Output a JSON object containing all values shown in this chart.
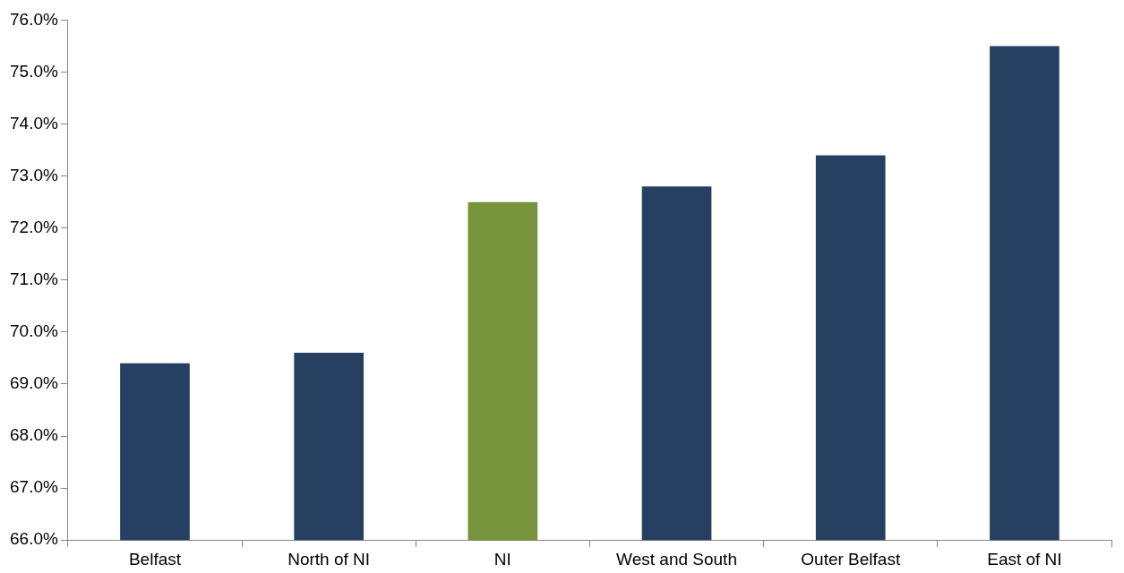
{
  "chart_data": {
    "type": "bar",
    "categories": [
      "Belfast",
      "North of NI",
      "NI",
      "West and South",
      "Outer Belfast",
      "East of NI"
    ],
    "values": [
      69.4,
      69.6,
      72.5,
      72.8,
      73.4,
      75.5
    ],
    "colors": [
      "#264061",
      "#264061",
      "#77933c",
      "#264061",
      "#264061",
      "#264061"
    ],
    "ylim": [
      66,
      76
    ],
    "yticks": [
      {
        "value": 66,
        "label": "66.0%"
      },
      {
        "value": 67,
        "label": "67.0%"
      },
      {
        "value": 68,
        "label": "68.0%"
      },
      {
        "value": 69,
        "label": "69.0%"
      },
      {
        "value": 70,
        "label": "70.0%"
      },
      {
        "value": 71,
        "label": "71.0%"
      },
      {
        "value": 72,
        "label": "72.0%"
      },
      {
        "value": 73,
        "label": "73.0%"
      },
      {
        "value": 74,
        "label": "74.0%"
      },
      {
        "value": 75,
        "label": "75.0%"
      },
      {
        "value": 76,
        "label": "76.0%"
      }
    ],
    "grid": false,
    "legend": false
  }
}
